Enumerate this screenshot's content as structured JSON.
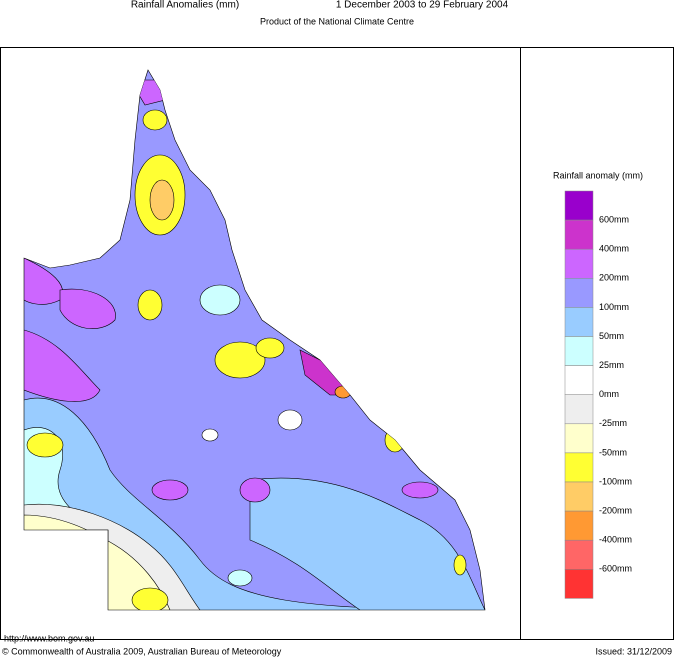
{
  "header": {
    "title": "Rainfall Anomalies (mm)",
    "period": "1 December 2003 to 29 February 2004",
    "subtitle": "Product of the National Climate Centre"
  },
  "legend": {
    "title": "Rainfall anomaly (mm)",
    "colors": [
      "#9900cc",
      "#cc33cc",
      "#cc66ff",
      "#9999ff",
      "#99ccff",
      "#ccffff",
      "#ffffff",
      "#eeeeee",
      "#ffffcc",
      "#ffff33",
      "#ffcc66",
      "#ff9933",
      "#ff6666",
      "#ff3333"
    ],
    "labels": [
      "600mm",
      "400mm",
      "200mm",
      "100mm",
      "50mm",
      "25mm",
      "0mm",
      "-25mm",
      "-50mm",
      "-100mm",
      "-200mm",
      "-400mm",
      "-600mm"
    ]
  },
  "footer": {
    "url": "http://www.bom.gov.au",
    "copyright": "© Commonwealth of Australia 2009, Australian Bureau of Meteorology",
    "issued": "Issued: 31/12/2009"
  }
}
